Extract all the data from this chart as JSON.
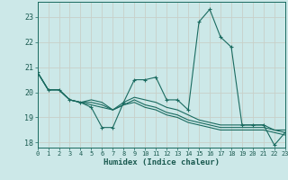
{
  "xlabel": "Humidex (Indice chaleur)",
  "background_color": "#cce8e8",
  "grid_color": "#b8d8d8",
  "line_color": "#1a6b60",
  "xlim": [
    0,
    23
  ],
  "ylim": [
    17.8,
    23.6
  ],
  "yticks": [
    18,
    19,
    20,
    21,
    22,
    23
  ],
  "xticks": [
    0,
    1,
    2,
    3,
    4,
    5,
    6,
    7,
    8,
    9,
    10,
    11,
    12,
    13,
    14,
    15,
    16,
    17,
    18,
    19,
    20,
    21,
    22,
    23
  ],
  "series": [
    [
      20.8,
      20.1,
      20.1,
      19.7,
      19.6,
      19.4,
      18.6,
      18.6,
      19.6,
      20.5,
      20.5,
      20.6,
      19.7,
      19.7,
      19.3,
      22.8,
      23.3,
      22.2,
      21.8,
      18.7,
      18.7,
      18.7,
      17.9,
      18.4
    ],
    [
      20.8,
      20.1,
      20.1,
      19.7,
      19.6,
      19.7,
      19.6,
      19.3,
      19.6,
      19.8,
      19.7,
      19.6,
      19.4,
      19.3,
      19.1,
      18.9,
      18.8,
      18.7,
      18.7,
      18.7,
      18.7,
      18.7,
      18.5,
      18.5
    ],
    [
      20.8,
      20.1,
      20.1,
      19.7,
      19.6,
      19.6,
      19.5,
      19.3,
      19.5,
      19.7,
      19.5,
      19.4,
      19.2,
      19.1,
      18.9,
      18.8,
      18.7,
      18.6,
      18.6,
      18.6,
      18.6,
      18.6,
      18.5,
      18.4
    ],
    [
      20.8,
      20.1,
      20.1,
      19.7,
      19.6,
      19.5,
      19.4,
      19.3,
      19.5,
      19.6,
      19.4,
      19.3,
      19.1,
      19.0,
      18.8,
      18.7,
      18.6,
      18.5,
      18.5,
      18.5,
      18.5,
      18.5,
      18.4,
      18.3
    ]
  ]
}
